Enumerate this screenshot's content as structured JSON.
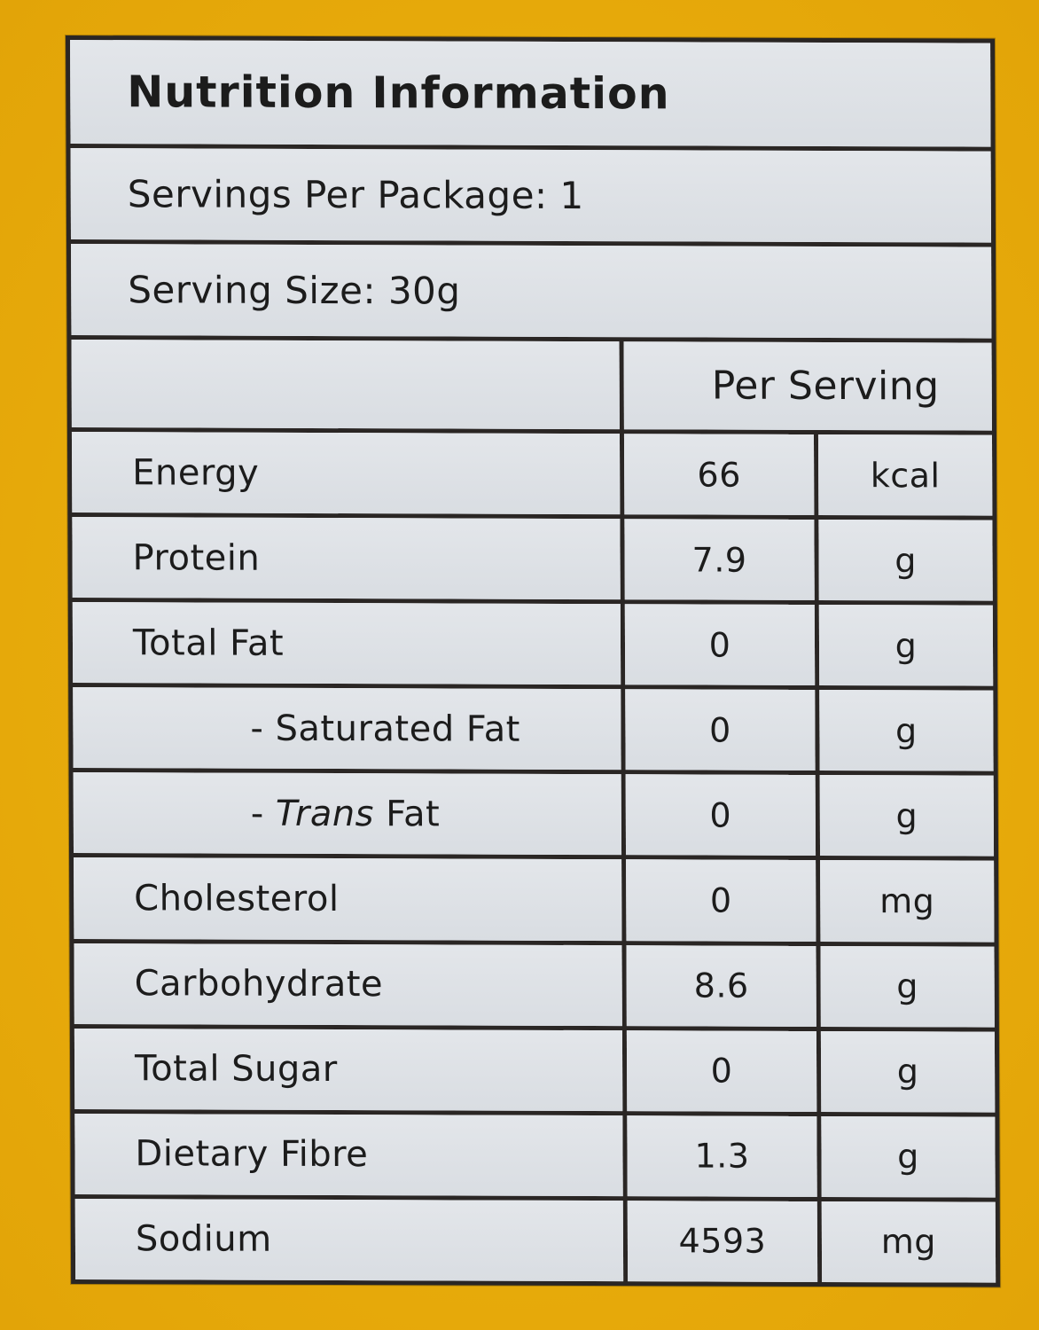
{
  "label": {
    "title": "Nutrition Information",
    "servings_per_package": "Servings Per Package: 1",
    "serving_size": "Serving Size: 30g",
    "column_header": "Per Serving",
    "rows": [
      {
        "name": "Energy",
        "value": "66",
        "unit": "kcal",
        "indent": false
      },
      {
        "name": "Protein",
        "value": "7.9",
        "unit": "g",
        "indent": false
      },
      {
        "name": "Total Fat",
        "value": "0",
        "unit": "g",
        "indent": false
      },
      {
        "name_prefix": "- ",
        "name": "Saturated Fat",
        "value": "0",
        "unit": "g",
        "indent": true
      },
      {
        "name_prefix": "- ",
        "name_italic": "Trans",
        "name": " Fat",
        "value": "0",
        "unit": "g",
        "indent": true
      },
      {
        "name": "Cholesterol",
        "value": "0",
        "unit": "mg",
        "indent": false
      },
      {
        "name": "Carbohydrate",
        "value": "8.6",
        "unit": "g",
        "indent": false
      },
      {
        "name": "Total Sugar",
        "value": "0",
        "unit": "g",
        "indent": false
      },
      {
        "name": "Dietary Fibre",
        "value": "1.3",
        "unit": "g",
        "indent": false
      },
      {
        "name": "Sodium",
        "value": "4593",
        "unit": "mg",
        "indent": false
      }
    ]
  },
  "colors": {
    "background": "#E9AE0C",
    "cell_fill": "#DDE1E6",
    "rule_lines": "#2A2624",
    "text": "#1C1C1C"
  }
}
